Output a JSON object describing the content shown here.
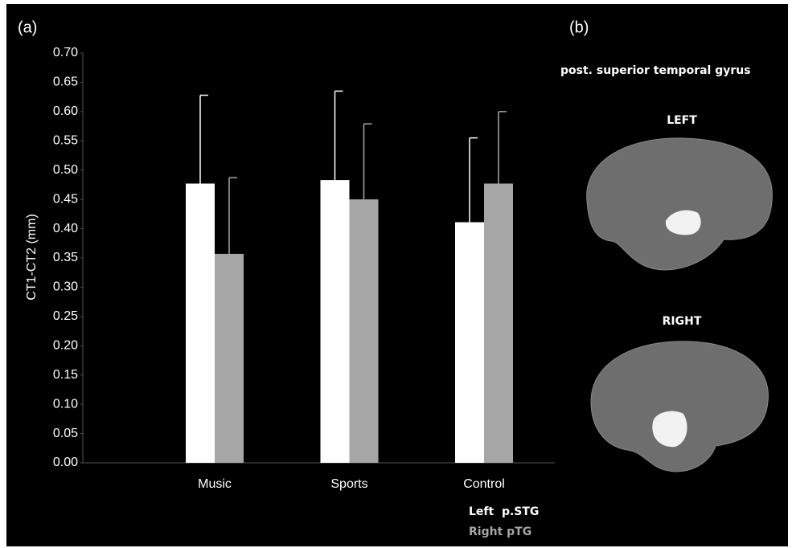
{
  "chart_data": {
    "type": "bar",
    "panel_label": "(a)",
    "y_label": "CT1-CT2  (mm)",
    "categories": [
      "Music",
      "Sports",
      "Control"
    ],
    "series": [
      {
        "name": "Left  p.STG",
        "color": "#ffffff",
        "values": [
          0.477,
          0.483,
          0.411
        ],
        "errors": [
          0.151,
          0.152,
          0.144
        ]
      },
      {
        "name": "Right pTG",
        "color": "#a6a6a6",
        "values": [
          0.357,
          0.45,
          0.477
        ],
        "errors": [
          0.13,
          0.129,
          0.123
        ]
      }
    ],
    "ylim": [
      0,
      0.7
    ],
    "yticks": [
      {
        "value": 0,
        "label": "0.00"
      },
      {
        "value": 0.05,
        "label": "0.05"
      },
      {
        "value": 0.1,
        "label": "0.10"
      },
      {
        "value": 0.15,
        "label": "0.15"
      },
      {
        "value": 0.2,
        "label": "0.20"
      },
      {
        "value": 0.25,
        "label": "0.25"
      },
      {
        "value": 0.3,
        "label": "0.30"
      },
      {
        "value": 0.35,
        "label": "0.35"
      },
      {
        "value": 0.4,
        "label": "0.40"
      },
      {
        "value": 0.45,
        "label": "0.45"
      },
      {
        "value": 0.5,
        "label": "0.50"
      },
      {
        "value": 0.55,
        "label": "0.55"
      },
      {
        "value": 0.6,
        "label": "0.60"
      },
      {
        "value": 0.65,
        "label": "0.65"
      },
      {
        "value": 0.7,
        "label": "0.70"
      }
    ],
    "grid": false
  },
  "brain_panel": {
    "panel_label": "(b)",
    "title": "post. superior temporal gyrus",
    "views": [
      "LEFT",
      "RIGHT"
    ]
  }
}
